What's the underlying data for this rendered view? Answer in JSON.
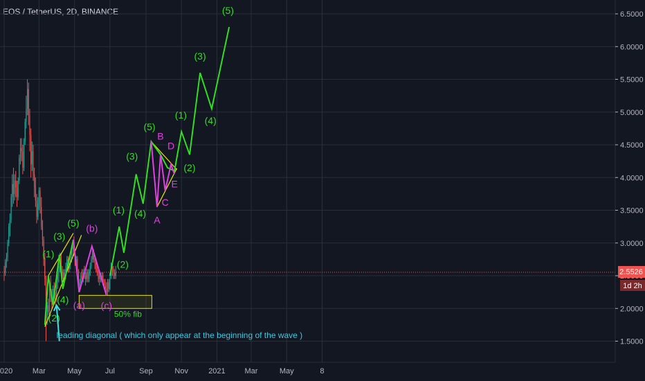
{
  "header": {
    "title": "EOS / TetherUS, 2D, BINANCE"
  },
  "colors": {
    "background": "#131722",
    "grid": "#2a2e39",
    "candle_up": "#26a69a",
    "candle_down": "#ef5350",
    "wave_green": "#33dd22",
    "wave_magenta": "#e040e0",
    "fib_yellow": "#e6e600",
    "price_line": "#ef5350",
    "arrow_cyan": "#3ee0e0",
    "axis_text": "#b2b5be"
  },
  "price_axis": {
    "ticks": [
      "6.5000",
      "6.0000",
      "5.5000",
      "5.0000",
      "4.5000",
      "4.0000",
      "3.5000",
      "3.0000",
      "2.5000",
      "2.0000",
      "1.5000"
    ],
    "current_price": "2.5526",
    "countdown": "1d 2h"
  },
  "chart_data": {
    "type": "line",
    "symbol": "EOS / TetherUS",
    "timeframe": "2D",
    "exchange": "BINANCE",
    "y_scale": "linear",
    "ylim": [
      1.25,
      6.95
    ],
    "grid": true,
    "x_tick_labels": [
      "2020",
      "Mar",
      "May",
      "Jul",
      "Sep",
      "Nov",
      "2021",
      "Mar",
      "May",
      "8"
    ],
    "last_price": 2.5526,
    "candles": [
      [
        "2020-01-01",
        2.57,
        2.65,
        2.42,
        2.55
      ],
      [
        "2020-01-03",
        2.55,
        2.75,
        2.5,
        2.7
      ],
      [
        "2020-01-05",
        2.7,
        2.85,
        2.62,
        2.78
      ],
      [
        "2020-01-07",
        2.78,
        3.05,
        2.72,
        3.0
      ],
      [
        "2020-01-09",
        3.0,
        3.3,
        2.95,
        3.25
      ],
      [
        "2020-01-11",
        3.25,
        3.45,
        3.1,
        3.35
      ],
      [
        "2020-01-13",
        3.35,
        3.75,
        3.3,
        3.7
      ],
      [
        "2020-01-15",
        3.7,
        4.05,
        3.55,
        3.9
      ],
      [
        "2020-01-17",
        3.9,
        4.15,
        3.6,
        3.75
      ],
      [
        "2020-01-19",
        3.75,
        4.05,
        3.65,
        3.95
      ],
      [
        "2020-01-21",
        3.95,
        4.1,
        3.7,
        3.85
      ],
      [
        "2020-01-23",
        3.85,
        3.95,
        3.55,
        3.7
      ],
      [
        "2020-01-25",
        3.7,
        4.0,
        3.65,
        3.95
      ],
      [
        "2020-01-27",
        3.95,
        4.35,
        3.9,
        4.3
      ],
      [
        "2020-01-29",
        4.3,
        4.6,
        4.2,
        4.45
      ],
      [
        "2020-01-31",
        4.45,
        4.6,
        4.25,
        4.4
      ],
      [
        "2020-02-02",
        4.4,
        4.5,
        4.05,
        4.15
      ],
      [
        "2020-02-04",
        4.15,
        4.6,
        4.1,
        4.55
      ],
      [
        "2020-02-06",
        4.55,
        4.9,
        4.5,
        4.85
      ],
      [
        "2020-02-08",
        4.85,
        5.25,
        4.75,
        5.05
      ],
      [
        "2020-02-10",
        5.05,
        5.5,
        4.95,
        5.35
      ],
      [
        "2020-02-12",
        5.35,
        5.45,
        4.8,
        4.95
      ],
      [
        "2020-02-14",
        4.95,
        5.05,
        4.4,
        4.65
      ],
      [
        "2020-02-16",
        4.65,
        4.75,
        4.0,
        4.2
      ],
      [
        "2020-02-18",
        4.2,
        4.55,
        4.1,
        4.4
      ],
      [
        "2020-02-20",
        4.4,
        4.5,
        3.95,
        4.05
      ],
      [
        "2020-02-22",
        4.05,
        4.15,
        3.7,
        3.85
      ],
      [
        "2020-02-24",
        3.85,
        4.0,
        3.55,
        3.65
      ],
      [
        "2020-02-26",
        3.65,
        3.75,
        3.3,
        3.4
      ],
      [
        "2020-02-28",
        3.4,
        3.7,
        3.35,
        3.6
      ],
      [
        "2020-03-01",
        3.6,
        3.85,
        3.5,
        3.8
      ],
      [
        "2020-03-03",
        3.8,
        3.85,
        3.45,
        3.55
      ],
      [
        "2020-03-05",
        3.55,
        3.7,
        3.2,
        3.25
      ],
      [
        "2020-03-07",
        3.25,
        3.35,
        2.95,
        3.05
      ],
      [
        "2020-03-09",
        3.05,
        3.1,
        2.65,
        2.75
      ],
      [
        "2020-03-11",
        2.75,
        2.85,
        2.35,
        2.45
      ],
      [
        "2020-03-13",
        2.45,
        2.5,
        1.5,
        1.85
      ],
      [
        "2020-03-15",
        1.85,
        2.1,
        1.75,
        2.05
      ],
      [
        "2020-03-17",
        2.05,
        2.15,
        1.9,
        1.95
      ],
      [
        "2020-03-19",
        1.95,
        2.35,
        1.9,
        2.3
      ],
      [
        "2020-03-21",
        2.3,
        2.5,
        2.1,
        2.2
      ],
      [
        "2020-03-23",
        2.2,
        2.3,
        2.0,
        2.1
      ],
      [
        "2020-03-25",
        2.1,
        2.35,
        2.05,
        2.3
      ],
      [
        "2020-03-27",
        2.3,
        2.4,
        2.15,
        2.2
      ],
      [
        "2020-03-29",
        2.2,
        2.25,
        2.05,
        2.15
      ],
      [
        "2020-03-31",
        2.15,
        2.45,
        2.1,
        2.4
      ],
      [
        "2020-04-02",
        2.4,
        2.55,
        2.3,
        2.5
      ],
      [
        "2020-04-04",
        2.5,
        2.65,
        2.4,
        2.6
      ],
      [
        "2020-04-06",
        2.6,
        2.85,
        2.55,
        2.8
      ],
      [
        "2020-04-08",
        2.8,
        2.85,
        2.55,
        2.6
      ],
      [
        "2020-04-10",
        2.6,
        2.65,
        2.35,
        2.45
      ],
      [
        "2020-04-12",
        2.45,
        2.6,
        2.35,
        2.55
      ],
      [
        "2020-04-14",
        2.55,
        2.6,
        2.4,
        2.5
      ],
      [
        "2020-04-16",
        2.5,
        2.7,
        2.45,
        2.65
      ],
      [
        "2020-04-18",
        2.65,
        2.8,
        2.6,
        2.75
      ],
      [
        "2020-04-20",
        2.75,
        2.8,
        2.55,
        2.6
      ],
      [
        "2020-04-22",
        2.6,
        2.75,
        2.55,
        2.7
      ],
      [
        "2020-04-24",
        2.7,
        2.8,
        2.6,
        2.75
      ],
      [
        "2020-04-26",
        2.75,
        2.95,
        2.7,
        2.9
      ],
      [
        "2020-04-28",
        2.9,
        3.05,
        2.8,
        2.95
      ],
      [
        "2020-04-30",
        2.95,
        3.1,
        2.8,
        2.85
      ],
      [
        "2020-05-02",
        2.85,
        2.9,
        2.65,
        2.7
      ],
      [
        "2020-05-04",
        2.7,
        2.8,
        2.6,
        2.75
      ],
      [
        "2020-05-06",
        2.75,
        2.8,
        2.5,
        2.55
      ],
      [
        "2020-05-08",
        2.55,
        2.6,
        2.25,
        2.35
      ],
      [
        "2020-05-10",
        2.35,
        2.45,
        2.25,
        2.4
      ],
      [
        "2020-05-12",
        2.4,
        2.55,
        2.35,
        2.5
      ],
      [
        "2020-05-14",
        2.5,
        2.6,
        2.4,
        2.45
      ],
      [
        "2020-05-16",
        2.45,
        2.6,
        2.4,
        2.55
      ],
      [
        "2020-05-18",
        2.55,
        2.65,
        2.45,
        2.5
      ],
      [
        "2020-05-20",
        2.5,
        2.55,
        2.35,
        2.45
      ],
      [
        "2020-05-22",
        2.45,
        2.6,
        2.4,
        2.55
      ],
      [
        "2020-05-24",
        2.55,
        2.6,
        2.4,
        2.45
      ],
      [
        "2020-05-26",
        2.45,
        2.6,
        2.4,
        2.55
      ],
      [
        "2020-05-28",
        2.55,
        2.7,
        2.5,
        2.65
      ],
      [
        "2020-05-30",
        2.65,
        2.8,
        2.6,
        2.75
      ],
      [
        "2020-06-01",
        2.75,
        2.95,
        2.7,
        2.85
      ],
      [
        "2020-06-03",
        2.85,
        2.9,
        2.7,
        2.75
      ],
      [
        "2020-06-05",
        2.75,
        2.8,
        2.6,
        2.7
      ],
      [
        "2020-06-07",
        2.7,
        2.75,
        2.55,
        2.6
      ],
      [
        "2020-06-09",
        2.6,
        2.7,
        2.5,
        2.55
      ],
      [
        "2020-06-11",
        2.55,
        2.6,
        2.4,
        2.45
      ],
      [
        "2020-06-13",
        2.45,
        2.55,
        2.35,
        2.5
      ],
      [
        "2020-06-15",
        2.5,
        2.55,
        2.4,
        2.45
      ],
      [
        "2020-06-17",
        2.45,
        2.55,
        2.4,
        2.5
      ],
      [
        "2020-06-19",
        2.5,
        2.55,
        2.35,
        2.4
      ],
      [
        "2020-06-21",
        2.4,
        2.45,
        2.3,
        2.35
      ],
      [
        "2020-06-23",
        2.35,
        2.45,
        2.25,
        2.3
      ],
      [
        "2020-06-25",
        2.3,
        2.4,
        2.2,
        2.25
      ],
      [
        "2020-06-27",
        2.25,
        2.45,
        2.2,
        2.4
      ],
      [
        "2020-06-29",
        2.4,
        2.45,
        2.25,
        2.3
      ],
      [
        "2020-07-01",
        2.3,
        2.55,
        2.28,
        2.5
      ],
      [
        "2020-07-03",
        2.5,
        2.7,
        2.45,
        2.65
      ],
      [
        "2020-07-05",
        2.65,
        2.7,
        2.5,
        2.6
      ],
      [
        "2020-07-07",
        2.6,
        2.65,
        2.45,
        2.55
      ],
      [
        "2020-07-09",
        2.55,
        2.6,
        2.45,
        2.5
      ],
      [
        "2020-07-11",
        2.5,
        2.65,
        2.45,
        2.55
      ]
    ],
    "annotations": {
      "green_wave_path": [
        [
          "2020-07-01",
          2.5
        ],
        [
          "2020-07-17",
          3.25
        ],
        [
          "2020-07-25",
          2.85
        ],
        [
          "2020-08-15",
          4.05
        ],
        [
          "2020-08-27",
          3.6
        ],
        [
          "2020-09-10",
          4.55
        ],
        [
          "2020-09-26",
          4.35
        ],
        [
          "2020-10-08",
          4.15
        ],
        [
          "2020-10-20",
          4.1
        ],
        [
          "2020-11-01",
          4.7
        ],
        [
          "2020-11-15",
          4.35
        ],
        [
          "2020-12-03",
          5.6
        ],
        [
          "2020-12-23",
          5.05
        ],
        [
          "2021-01-22",
          6.3
        ]
      ],
      "green_wave_labels": [
        [
          "(1)",
          "2020-07-16",
          3.45
        ],
        [
          "(2)",
          "2020-07-23",
          2.62
        ],
        [
          "(3)",
          "2020-08-08",
          4.27
        ],
        [
          "(4)",
          "2020-08-22",
          3.4
        ],
        [
          "(5)",
          "2020-09-07",
          4.72
        ],
        [
          "(1)",
          "2020-10-31",
          4.9
        ],
        [
          "(2)",
          "2020-11-15",
          4.1
        ],
        [
          "(3)",
          "2020-12-03",
          5.8
        ],
        [
          "(4)",
          "2020-12-21",
          4.82
        ],
        [
          "(5)",
          "2021-01-20",
          6.5
        ]
      ],
      "leading_diagonal_path": [
        [
          "2020-03-11",
          1.75
        ],
        [
          "2020-03-17",
          2.5
        ],
        [
          "2020-03-25",
          2.05
        ],
        [
          "2020-04-05",
          2.82
        ],
        [
          "2020-04-11",
          2.3
        ],
        [
          "2020-04-29",
          3.05
        ]
      ],
      "leading_diagonal_labels": [
        [
          "(1)",
          "2020-03-17",
          2.78
        ],
        [
          "(2)",
          "2020-03-27",
          1.8
        ],
        [
          "(3)",
          "2020-04-05",
          3.05
        ],
        [
          "(4)",
          "2020-04-11",
          2.08
        ],
        [
          "(5)",
          "2020-04-29",
          3.25
        ]
      ],
      "diagonal_trendlines": [
        [
          [
            "2020-03-11",
            1.72
          ],
          [
            "2020-05-13",
            3.12
          ]
        ],
        [
          [
            "2020-03-17",
            2.5
          ],
          [
            "2020-04-29",
            3.15
          ]
        ]
      ],
      "corrective_abc_path": [
        [
          "2020-04-29",
          3.05
        ],
        [
          "2020-05-09",
          2.25
        ],
        [
          "2020-05-31",
          2.95
        ],
        [
          "2020-06-25",
          2.2
        ]
      ],
      "corrective_abc_labels": [
        [
          "(a)",
          "2020-05-09",
          2.0
        ],
        [
          "(b)",
          "2020-05-31",
          3.17
        ],
        [
          "(c)",
          "2020-06-25",
          1.99
        ]
      ],
      "triangle_path": [
        [
          "2020-09-10",
          4.55
        ],
        [
          "2020-09-20",
          3.55
        ],
        [
          "2020-09-26",
          4.35
        ],
        [
          "2020-10-04",
          3.8
        ],
        [
          "2020-10-14",
          4.2
        ],
        [
          "2020-10-20",
          4.05
        ]
      ],
      "triangle_labels": [
        [
          "A",
          "2020-09-20",
          3.3
        ],
        [
          "B",
          "2020-09-26",
          4.58
        ],
        [
          "C",
          "2020-10-04",
          3.57
        ],
        [
          "D",
          "2020-10-14",
          4.43
        ],
        [
          "E",
          "2020-10-20",
          3.85
        ]
      ],
      "triangle_trendlines": [
        [
          [
            "2020-09-10",
            4.55
          ],
          [
            "2020-10-24",
            4.12
          ]
        ],
        [
          [
            "2020-09-20",
            3.55
          ],
          [
            "2020-10-24",
            4.14
          ]
        ]
      ],
      "fib_zone": {
        "label": "50% fib",
        "from": "2020-05-09",
        "to": "2020-09-11",
        "top": 2.2,
        "bottom": 2.0
      },
      "note_text": "leading diagonal ( which only appear at the beginning of the wave )",
      "note_anchor": [
        "2020-03-31",
        1.55
      ],
      "arrow_from": [
        "2020-04-05",
        1.5
      ],
      "arrow_to": [
        "2020-03-31",
        2.05
      ]
    }
  }
}
